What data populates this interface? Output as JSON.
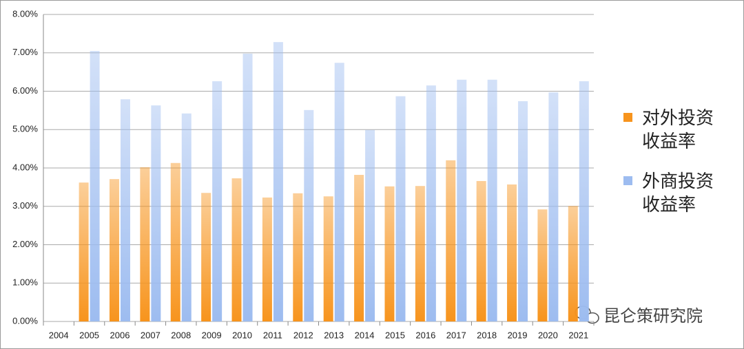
{
  "chart_data": {
    "type": "bar",
    "categories": [
      "2004",
      "2005",
      "2006",
      "2007",
      "2008",
      "2009",
      "2010",
      "2011",
      "2012",
      "2013",
      "2014",
      "2015",
      "2016",
      "2017",
      "2018",
      "2019",
      "2020",
      "2021"
    ],
    "series": [
      {
        "name": "对外投资收益率",
        "color": "#f7941d",
        "values": [
          null,
          3.62,
          3.71,
          4.02,
          4.13,
          3.35,
          3.73,
          3.23,
          3.34,
          3.26,
          3.82,
          3.52,
          3.53,
          4.2,
          3.66,
          3.57,
          2.92,
          3.01
        ]
      },
      {
        "name": "外商投资收益率",
        "color": "#9dbcf0",
        "values": [
          null,
          7.05,
          5.79,
          5.63,
          5.42,
          6.26,
          6.98,
          7.28,
          5.51,
          6.74,
          4.99,
          5.87,
          6.15,
          6.3,
          6.3,
          5.74,
          5.97,
          6.26
        ]
      }
    ],
    "ylim": [
      0,
      8
    ],
    "yticks": [
      {
        "value": 0,
        "label": "0.00%"
      },
      {
        "value": 1,
        "label": "1.00%"
      },
      {
        "value": 2,
        "label": "2.00%"
      },
      {
        "value": 3,
        "label": "3.00%"
      },
      {
        "value": 4,
        "label": "4.00%"
      },
      {
        "value": 5,
        "label": "5.00%"
      },
      {
        "value": 6,
        "label": "6.00%"
      },
      {
        "value": 7,
        "label": "7.00%"
      },
      {
        "value": 8,
        "label": "8.00%"
      }
    ],
    "grid": true,
    "legend": "right",
    "watermark": "昆仑策研究院"
  }
}
